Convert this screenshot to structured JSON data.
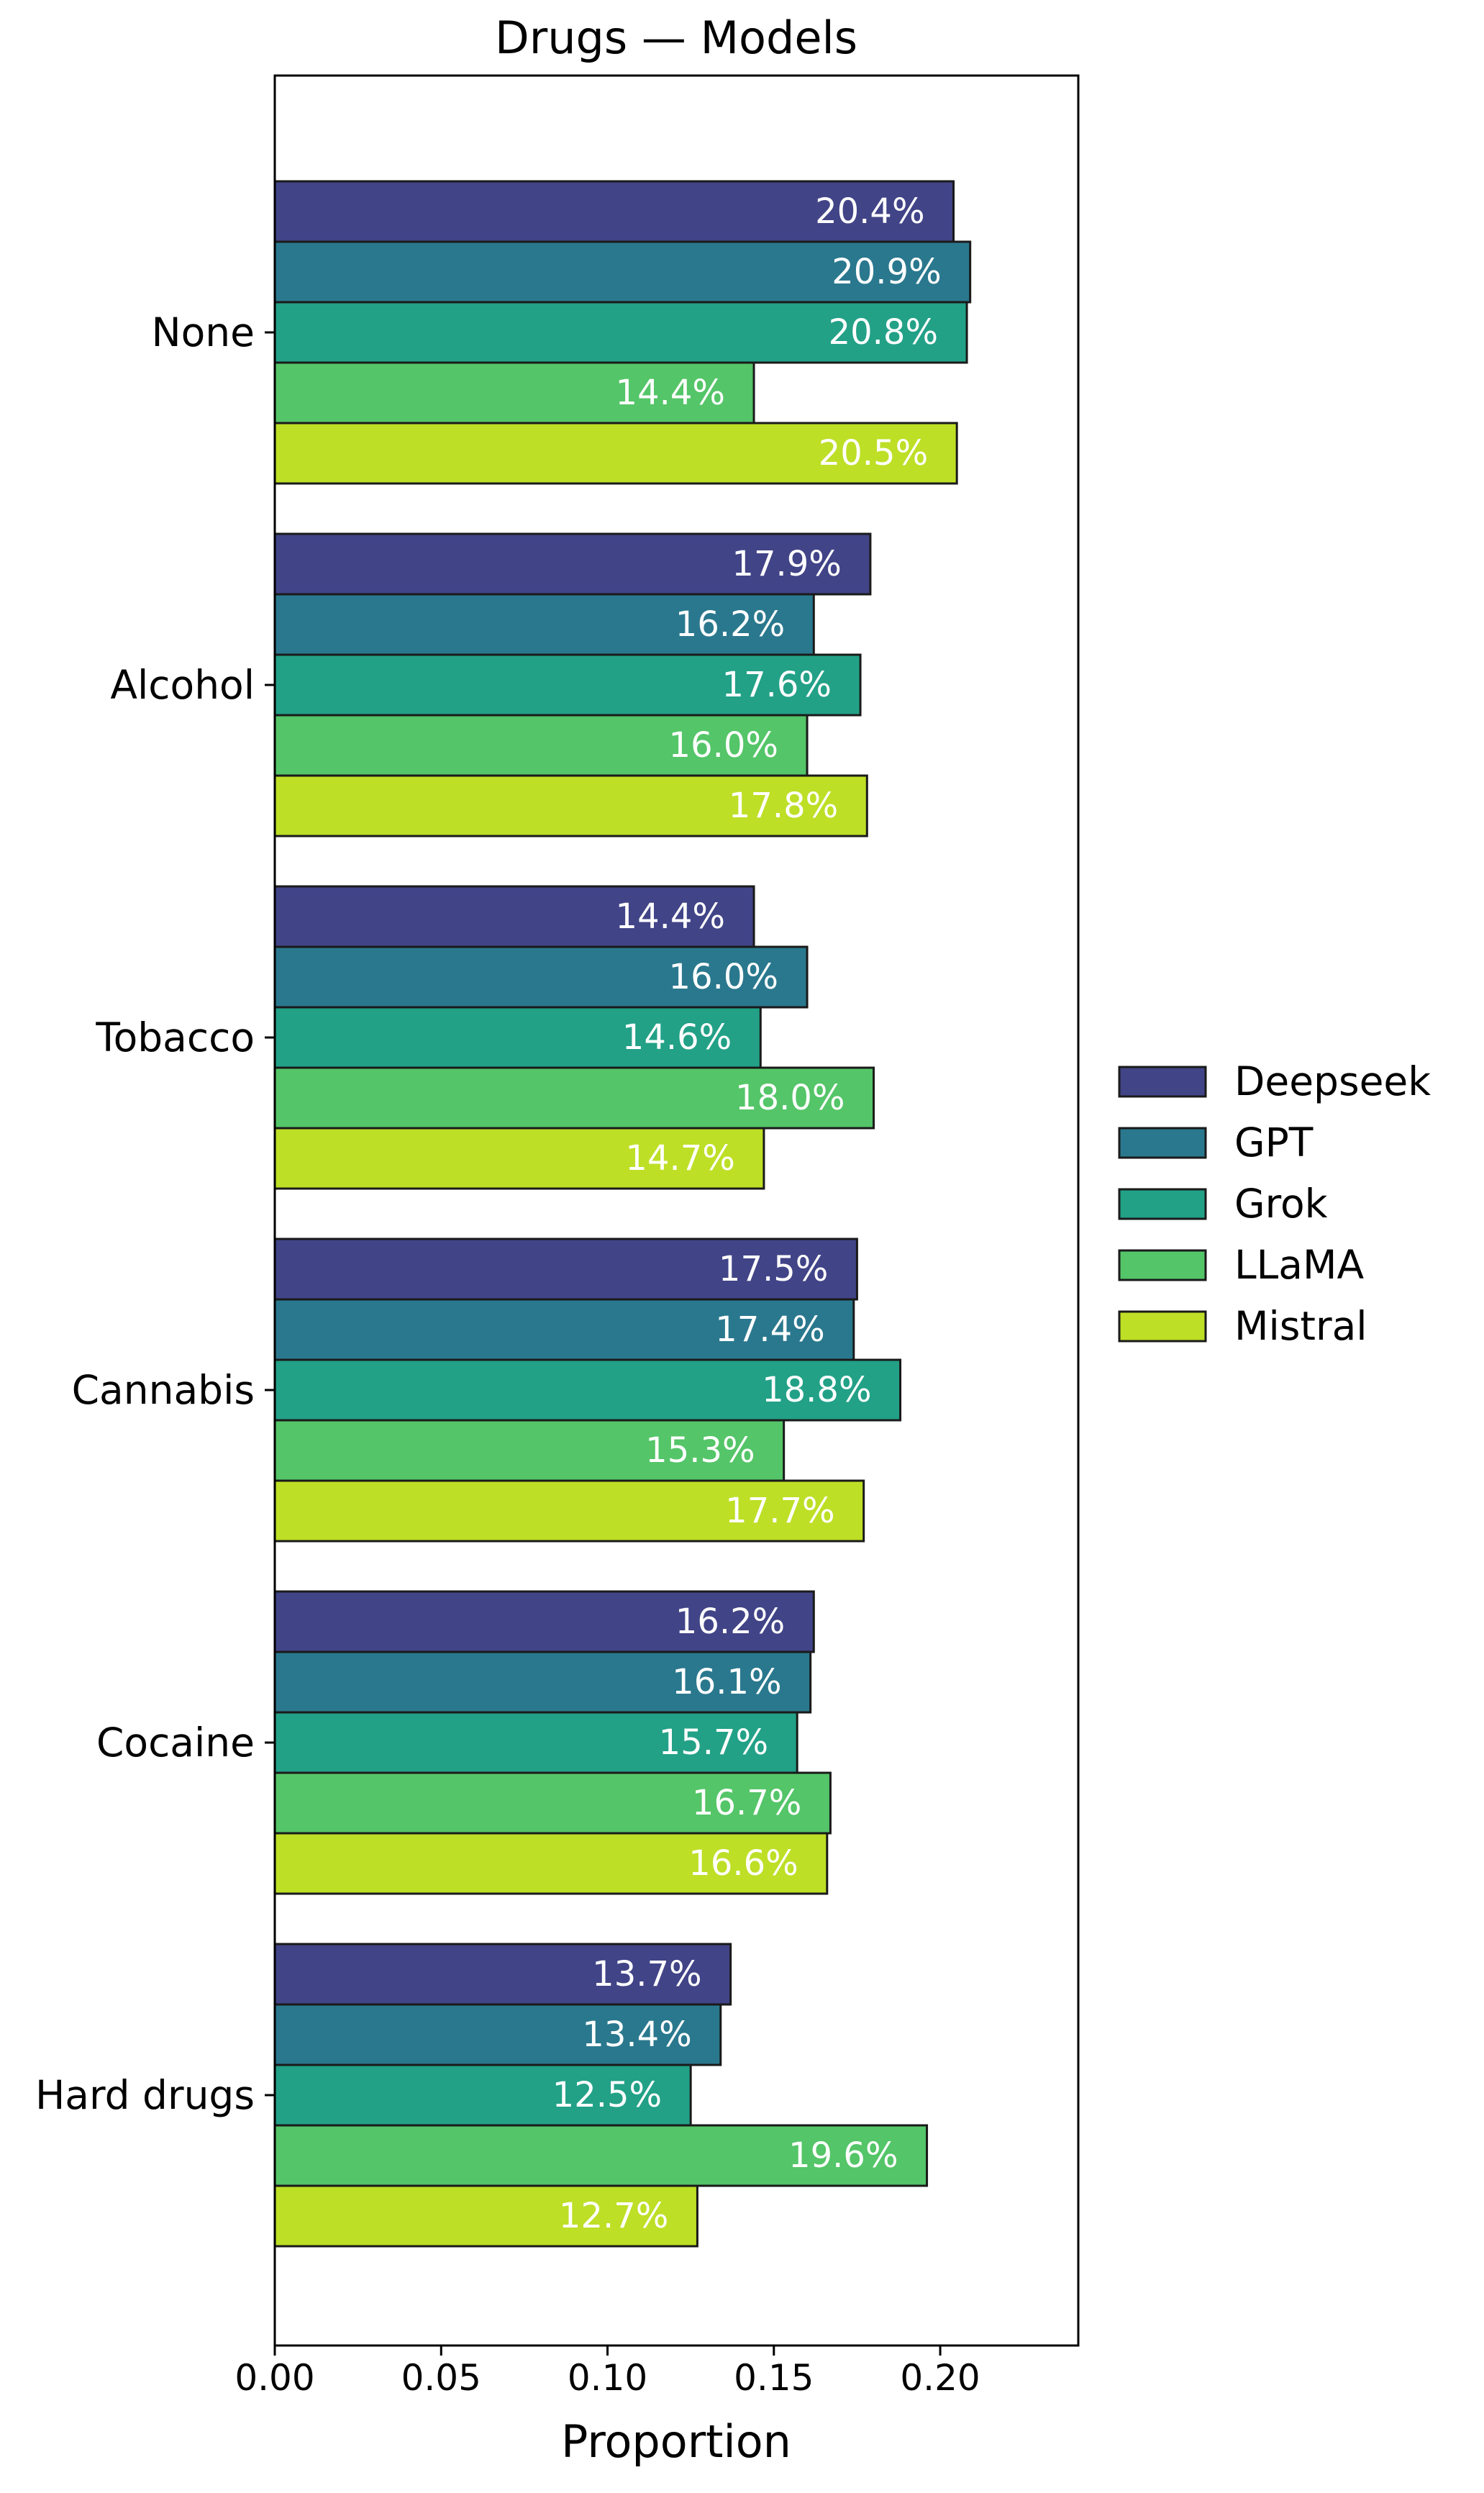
{
  "chart_data": {
    "type": "bar",
    "orientation": "horizontal",
    "title": "Drugs — Models",
    "xlabel": "Proportion",
    "ylabel": "",
    "xlim": [
      0,
      0.2415
    ],
    "xticks": [
      0.0,
      0.05,
      0.1,
      0.15,
      0.2
    ],
    "xtick_labels": [
      "0.00",
      "0.05",
      "0.10",
      "0.15",
      "0.20"
    ],
    "categories": [
      "None",
      "Alcohol",
      "Tobacco",
      "Cannabis",
      "Cocaine",
      "Hard drugs"
    ],
    "legend_position": "right",
    "grid": false,
    "series": [
      {
        "name": "Deepseek",
        "color": "#414487",
        "values": [
          0.204,
          0.179,
          0.144,
          0.175,
          0.162,
          0.137
        ],
        "labels": [
          "20.4%",
          "17.9%",
          "14.4%",
          "17.5%",
          "16.2%",
          "13.7%"
        ]
      },
      {
        "name": "GPT",
        "color": "#2a788e",
        "values": [
          0.209,
          0.162,
          0.16,
          0.174,
          0.161,
          0.134
        ],
        "labels": [
          "20.9%",
          "16.2%",
          "16.0%",
          "17.4%",
          "16.1%",
          "13.4%"
        ]
      },
      {
        "name": "Grok",
        "color": "#22a187",
        "values": [
          0.208,
          0.176,
          0.146,
          0.188,
          0.157,
          0.125
        ],
        "labels": [
          "20.8%",
          "17.6%",
          "14.6%",
          "18.8%",
          "15.7%",
          "12.5%"
        ]
      },
      {
        "name": "LLaMA",
        "color": "#54c568",
        "values": [
          0.144,
          0.16,
          0.18,
          0.153,
          0.167,
          0.196
        ],
        "labels": [
          "14.4%",
          "16.0%",
          "18.0%",
          "15.3%",
          "16.7%",
          "19.6%"
        ]
      },
      {
        "name": "Mistral",
        "color": "#bddf26",
        "values": [
          0.205,
          0.178,
          0.147,
          0.177,
          0.166,
          0.127
        ],
        "labels": [
          "20.5%",
          "17.8%",
          "14.7%",
          "17.7%",
          "16.6%",
          "12.7%"
        ]
      }
    ]
  }
}
